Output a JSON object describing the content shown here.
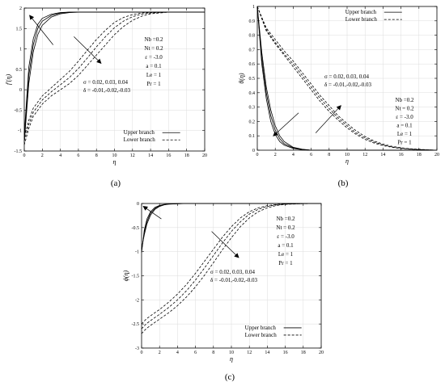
{
  "chart_data": [
    {
      "type": "line",
      "caption": "(a)",
      "xlabel": "η",
      "ylabel": "f'(η)",
      "xlim": [
        0,
        20
      ],
      "ylim": [
        -1.5,
        2
      ],
      "x_ticks": [
        0,
        2,
        4,
        6,
        8,
        10,
        12,
        14,
        16,
        18,
        20
      ],
      "y_ticks": [
        -1.5,
        -1,
        -0.5,
        0,
        0.5,
        1,
        1.5,
        2
      ],
      "x_tick_labels": [
        "0",
        "2",
        "4",
        "6",
        "8",
        "10",
        "12",
        "14",
        "16",
        "18",
        "20"
      ],
      "y_tick_labels": [
        "-1.5",
        "-1",
        "-0.5",
        "0",
        "0.5",
        "1",
        "1.5",
        "2"
      ],
      "grid": true,
      "legend": "bottom-right",
      "legend_entries": [
        "Upper branch",
        "Lower branch"
      ],
      "params": [
        "Nb =0.2",
        "Nt = 0.2",
        "ε = -3.0",
        "a = 0.1",
        "Le = 1",
        "Pr = 1"
      ],
      "annotation": [
        "σ = 0.02, 0.03, 0.04",
        "δ = -0.01,-0.02,-0.03"
      ],
      "series": [
        {
          "style": "solid",
          "x": [
            0,
            0.5,
            1,
            1.5,
            2,
            3,
            4,
            5,
            6,
            8,
            10,
            20
          ],
          "y": [
            -1.3,
            0.15,
            0.93,
            1.35,
            1.58,
            1.78,
            1.86,
            1.89,
            1.9,
            1.9,
            1.9,
            1.9
          ]
        },
        {
          "style": "solid",
          "x": [
            0,
            0.5,
            1,
            1.5,
            2,
            3,
            4,
            5,
            6,
            8,
            10,
            20
          ],
          "y": [
            -1.2,
            0.35,
            1.1,
            1.5,
            1.68,
            1.82,
            1.88,
            1.9,
            1.9,
            1.9,
            1.9,
            1.9
          ]
        },
        {
          "style": "solid",
          "x": [
            0,
            0.5,
            1,
            1.5,
            2,
            3,
            4,
            5,
            6,
            8,
            10,
            20
          ],
          "y": [
            -1.1,
            0.55,
            1.25,
            1.6,
            1.75,
            1.85,
            1.89,
            1.9,
            1.9,
            1.9,
            1.9,
            1.9
          ]
        },
        {
          "style": "dashed",
          "x": [
            0,
            0.5,
            1,
            2,
            3,
            4,
            5,
            6,
            7,
            8,
            9,
            10,
            11,
            12,
            13,
            14,
            16,
            18,
            20
          ],
          "y": [
            -1.35,
            -0.95,
            -0.65,
            -0.35,
            -0.15,
            0.0,
            0.15,
            0.35,
            0.6,
            0.85,
            1.1,
            1.35,
            1.55,
            1.7,
            1.8,
            1.86,
            1.9,
            1.9,
            1.9
          ]
        },
        {
          "style": "dashed",
          "x": [
            0,
            0.5,
            1,
            2,
            3,
            4,
            5,
            6,
            7,
            8,
            9,
            10,
            11,
            12,
            13,
            14,
            16,
            18,
            20
          ],
          "y": [
            -1.25,
            -0.85,
            -0.55,
            -0.25,
            -0.05,
            0.12,
            0.3,
            0.52,
            0.78,
            1.05,
            1.3,
            1.52,
            1.68,
            1.79,
            1.85,
            1.88,
            1.9,
            1.9,
            1.9
          ]
        },
        {
          "style": "dashed",
          "x": [
            0,
            0.5,
            1,
            2,
            3,
            4,
            5,
            6,
            7,
            8,
            9,
            10,
            11,
            12,
            13,
            14,
            16,
            18,
            20
          ],
          "y": [
            -1.15,
            -0.75,
            -0.45,
            -0.15,
            0.05,
            0.25,
            0.45,
            0.7,
            0.97,
            1.23,
            1.46,
            1.65,
            1.77,
            1.84,
            1.88,
            1.89,
            1.9,
            1.9,
            1.9
          ]
        }
      ],
      "arrows": [
        {
          "from": [
            3.2,
            1.1
          ],
          "to": [
            0.6,
            1.82
          ]
        },
        {
          "from": [
            5.5,
            1.3
          ],
          "to": [
            8.5,
            0.65
          ]
        }
      ],
      "legend_pos_data": [
        11,
        -1.05
      ]
    },
    {
      "type": "line",
      "caption": "(b)",
      "xlabel": "η",
      "ylabel": "θ(η)",
      "xlim": [
        0,
        20
      ],
      "ylim": [
        0,
        1
      ],
      "x_ticks": [
        0,
        2,
        4,
        6,
        8,
        10,
        12,
        14,
        16,
        18,
        20
      ],
      "y_ticks": [
        0,
        0.1,
        0.2,
        0.3,
        0.4,
        0.5,
        0.6,
        0.7,
        0.8,
        0.9,
        1
      ],
      "x_tick_labels": [
        "0",
        "2",
        "4",
        "6",
        "8",
        "10",
        "12",
        "14",
        "16",
        "18",
        "20"
      ],
      "y_tick_labels": [
        "0",
        "0.1",
        "0.2",
        "0.3",
        "0.4",
        "0.5",
        "0.6",
        "0.7",
        "0.8",
        "0.9",
        "1"
      ],
      "grid": true,
      "legend": "top-right",
      "legend_entries": [
        "Upper branch",
        "Lower branch"
      ],
      "params": [
        "Nb =0.2",
        "Nt = 0.2",
        "ε = -3.0",
        "a = 0.1",
        "Le = 1",
        "Pr = 1"
      ],
      "annotation": [
        "σ = 0.02, 0.03, 0.04",
        "δ = -0.01,-0.02,-0.03"
      ],
      "series": [
        {
          "style": "solid",
          "x": [
            0,
            0.5,
            1,
            1.5,
            2,
            2.5,
            3,
            4,
            5,
            6,
            8,
            10,
            20
          ],
          "y": [
            1.0,
            0.6,
            0.36,
            0.2,
            0.11,
            0.06,
            0.035,
            0.012,
            0.004,
            0.0,
            0.0,
            0.0,
            0.0
          ]
        },
        {
          "style": "solid",
          "x": [
            0,
            0.5,
            1,
            1.5,
            2,
            2.5,
            3,
            4,
            5,
            6,
            8,
            10,
            20
          ],
          "y": [
            1.0,
            0.64,
            0.4,
            0.24,
            0.14,
            0.08,
            0.045,
            0.016,
            0.005,
            0.0,
            0.0,
            0.0,
            0.0
          ]
        },
        {
          "style": "solid",
          "x": [
            0,
            0.5,
            1,
            1.5,
            2,
            2.5,
            3,
            4,
            5,
            6,
            8,
            10,
            20
          ],
          "y": [
            1.0,
            0.68,
            0.44,
            0.28,
            0.17,
            0.1,
            0.06,
            0.02,
            0.007,
            0.0,
            0.0,
            0.0,
            0.0
          ]
        },
        {
          "style": "dashed",
          "x": [
            0,
            1,
            2,
            3,
            4,
            5,
            6,
            7,
            8,
            9,
            10,
            11,
            12,
            13,
            14,
            15,
            16,
            17,
            18,
            19,
            20
          ],
          "y": [
            1.0,
            0.83,
            0.74,
            0.66,
            0.58,
            0.5,
            0.42,
            0.34,
            0.27,
            0.21,
            0.155,
            0.11,
            0.075,
            0.05,
            0.032,
            0.02,
            0.012,
            0.007,
            0.004,
            0.002,
            0.0
          ]
        },
        {
          "style": "dashed",
          "x": [
            0,
            1,
            2,
            3,
            4,
            5,
            6,
            7,
            8,
            9,
            10,
            11,
            12,
            13,
            14,
            15,
            16,
            17,
            18,
            19,
            20
          ],
          "y": [
            1.0,
            0.84,
            0.75,
            0.67,
            0.6,
            0.52,
            0.44,
            0.36,
            0.29,
            0.225,
            0.17,
            0.12,
            0.085,
            0.057,
            0.037,
            0.023,
            0.014,
            0.008,
            0.005,
            0.002,
            0.0
          ]
        },
        {
          "style": "dashed",
          "x": [
            0,
            1,
            2,
            3,
            4,
            5,
            6,
            7,
            8,
            9,
            10,
            11,
            12,
            13,
            14,
            15,
            16,
            17,
            18,
            19,
            20
          ],
          "y": [
            1.0,
            0.85,
            0.77,
            0.69,
            0.62,
            0.54,
            0.46,
            0.38,
            0.31,
            0.24,
            0.185,
            0.135,
            0.095,
            0.064,
            0.042,
            0.027,
            0.017,
            0.01,
            0.006,
            0.003,
            0.0
          ]
        }
      ],
      "arrows": [
        {
          "from": [
            4.6,
            0.26
          ],
          "to": [
            1.8,
            0.1
          ]
        },
        {
          "from": [
            6.5,
            0.12
          ],
          "to": [
            9.3,
            0.31
          ]
        }
      ],
      "legend_pos_data": [
        9.8,
        0.96
      ]
    },
    {
      "type": "line",
      "caption": "(c)",
      "xlabel": "η",
      "ylabel": "ϕ(η)",
      "xlim": [
        0,
        20
      ],
      "ylim": [
        -3,
        0
      ],
      "x_ticks": [
        0,
        2,
        4,
        6,
        8,
        10,
        12,
        14,
        16,
        18,
        20
      ],
      "y_ticks": [
        -3,
        -2.5,
        -2,
        -1.5,
        -1,
        -0.5,
        0
      ],
      "x_tick_labels": [
        "0",
        "2",
        "4",
        "6",
        "8",
        "10",
        "12",
        "14",
        "16",
        "18",
        "20"
      ],
      "y_tick_labels": [
        "-3",
        "-2.5",
        "-2",
        "-1.5",
        "-1",
        "-0.5",
        "0"
      ],
      "grid": true,
      "legend": "bottom-right",
      "legend_entries": [
        "Upper branch",
        "Lower branch"
      ],
      "params": [
        "Nb =0.2",
        "Nt = 0.2",
        "ε = -3.0",
        "a = 0.1",
        "Le = 1",
        "Pr = 1"
      ],
      "annotation": [
        "σ = 0.02, 0.03, 0.04",
        "δ = -0.01,-0.02,-0.03"
      ],
      "series": [
        {
          "style": "solid",
          "x": [
            0,
            0.3,
            0.6,
            1,
            1.5,
            2,
            2.5,
            3,
            4,
            5,
            6,
            8,
            20
          ],
          "y": [
            -1.02,
            -0.55,
            -0.32,
            -0.17,
            -0.08,
            -0.04,
            -0.02,
            -0.01,
            -0.003,
            0.0,
            0.0,
            0.0,
            0.0
          ]
        },
        {
          "style": "solid",
          "x": [
            0,
            0.3,
            0.6,
            1,
            1.5,
            2,
            2.5,
            3,
            4,
            5,
            6,
            8,
            20
          ],
          "y": [
            -0.98,
            -0.6,
            -0.37,
            -0.2,
            -0.1,
            -0.05,
            -0.025,
            -0.012,
            -0.004,
            0.0,
            0.0,
            0.0,
            0.0
          ]
        },
        {
          "style": "solid",
          "x": [
            0,
            0.3,
            0.6,
            1,
            1.5,
            2,
            2.5,
            3,
            4,
            5,
            6,
            8,
            20
          ],
          "y": [
            -0.94,
            -0.65,
            -0.42,
            -0.24,
            -0.12,
            -0.06,
            -0.03,
            -0.015,
            -0.005,
            0.0,
            0.0,
            0.0,
            0.0
          ]
        },
        {
          "style": "dashed",
          "x": [
            0,
            0.5,
            1,
            2,
            3,
            4,
            5,
            6,
            7,
            8,
            9,
            10,
            11,
            12,
            13,
            14,
            15,
            16,
            18,
            20
          ],
          "y": [
            -2.5,
            -2.4,
            -2.33,
            -2.2,
            -2.05,
            -1.88,
            -1.68,
            -1.45,
            -1.2,
            -0.95,
            -0.7,
            -0.48,
            -0.3,
            -0.17,
            -0.09,
            -0.045,
            -0.02,
            -0.008,
            -0.002,
            0.0
          ]
        },
        {
          "style": "dashed",
          "x": [
            0,
            0.5,
            1,
            2,
            3,
            4,
            5,
            6,
            7,
            8,
            9,
            10,
            11,
            12,
            13,
            14,
            15,
            16,
            18,
            20
          ],
          "y": [
            -2.6,
            -2.5,
            -2.43,
            -2.3,
            -2.16,
            -2.0,
            -1.81,
            -1.59,
            -1.34,
            -1.08,
            -0.82,
            -0.58,
            -0.38,
            -0.22,
            -0.12,
            -0.06,
            -0.028,
            -0.012,
            -0.003,
            0.0
          ]
        },
        {
          "style": "dashed",
          "x": [
            0,
            0.5,
            1,
            2,
            3,
            4,
            5,
            6,
            7,
            8,
            9,
            10,
            11,
            12,
            13,
            14,
            15,
            16,
            18,
            20
          ],
          "y": [
            -2.7,
            -2.6,
            -2.53,
            -2.4,
            -2.27,
            -2.12,
            -1.94,
            -1.73,
            -1.49,
            -1.23,
            -0.96,
            -0.71,
            -0.48,
            -0.3,
            -0.17,
            -0.09,
            -0.042,
            -0.018,
            -0.004,
            0.0
          ]
        }
      ],
      "arrows": [
        {
          "from": [
            2.2,
            -0.32
          ],
          "to": [
            0.2,
            -0.06
          ]
        },
        {
          "from": [
            7.8,
            -0.58
          ],
          "to": [
            10.8,
            -1.12
          ]
        }
      ],
      "legend_pos_data": [
        11.5,
        -2.58
      ]
    }
  ]
}
